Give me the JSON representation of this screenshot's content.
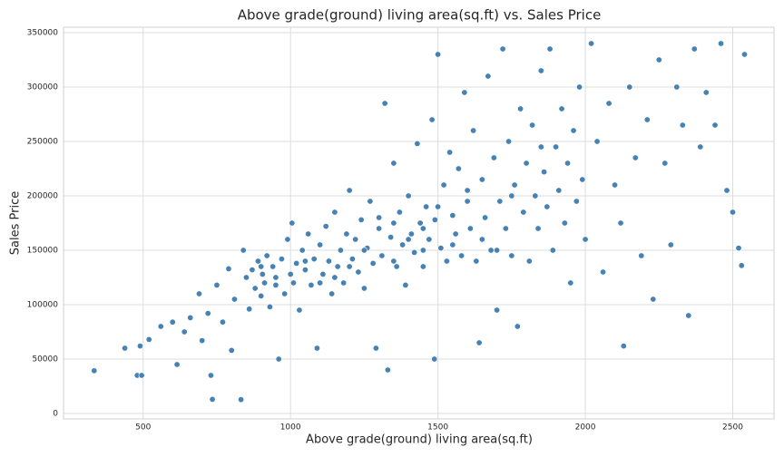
{
  "chart_data": {
    "type": "scatter",
    "title": "Above grade(ground) living area(sq.ft) vs. Sales Price",
    "x_label": "Above grade(ground) living area(sq.ft)",
    "y_label": "Sales Price",
    "color": "#4682b4",
    "grid": true,
    "xlim": [
      230,
      2640
    ],
    "ylim": [
      -5000,
      355000
    ],
    "xticks": [
      500,
      1000,
      1500,
      2000,
      2500
    ],
    "yticks": [
      0,
      50000,
      100000,
      150000,
      200000,
      250000,
      300000,
      350000
    ],
    "x": [
      334,
      438,
      480,
      495,
      490,
      520,
      560,
      600,
      615,
      640,
      660,
      690,
      700,
      720,
      730,
      735,
      750,
      770,
      790,
      800,
      810,
      832,
      840,
      850,
      860,
      870,
      880,
      890,
      900,
      905,
      912,
      920,
      930,
      940,
      950,
      960,
      970,
      980,
      990,
      1000,
      1005,
      1010,
      1020,
      1030,
      1040,
      1050,
      1060,
      1070,
      1080,
      1090,
      1100,
      1110,
      1120,
      1130,
      1140,
      1150,
      1160,
      1170,
      1180,
      1190,
      1200,
      1210,
      1220,
      1230,
      1240,
      1250,
      1260,
      1270,
      1280,
      1290,
      1300,
      1310,
      1320,
      1330,
      1340,
      1350,
      1360,
      1370,
      1380,
      1390,
      1400,
      1410,
      1420,
      1430,
      1440,
      1450,
      1460,
      1470,
      1480,
      1488,
      1490,
      1500,
      1510,
      1520,
      1530,
      1540,
      1550,
      1560,
      1570,
      1580,
      1590,
      1600,
      1610,
      1620,
      1630,
      1640,
      1650,
      1660,
      1670,
      1680,
      1690,
      1700,
      1710,
      1720,
      1730,
      1740,
      1750,
      1760,
      1770,
      1780,
      1790,
      1800,
      1810,
      1820,
      1830,
      1840,
      1850,
      1860,
      1870,
      1880,
      1890,
      1900,
      1910,
      1920,
      1930,
      1940,
      1950,
      1960,
      1970,
      1980,
      1990,
      2000,
      2020,
      2040,
      2060,
      2080,
      2100,
      2120,
      2130,
      2150,
      2170,
      2190,
      2210,
      2230,
      2250,
      2270,
      2290,
      2310,
      2330,
      2350,
      2370,
      2390,
      2410,
      2440,
      2460,
      2480,
      2500,
      2520,
      2530,
      2540,
      1400,
      1450,
      1350,
      1250,
      1150,
      950,
      1050,
      1550,
      1650,
      1750,
      1850,
      1600,
      1700,
      1300,
      1200,
      900,
      1100,
      1500,
      1450,
      1350
    ],
    "values": [
      39300,
      60000,
      35000,
      35000,
      62000,
      68000,
      80000,
      84000,
      45000,
      75000,
      88000,
      110000,
      67000,
      92000,
      35000,
      13000,
      118000,
      84000,
      133000,
      58000,
      105000,
      12800,
      150000,
      125000,
      96000,
      132000,
      115000,
      140000,
      108000,
      128000,
      120000,
      145000,
      98000,
      135000,
      118000,
      50000,
      142000,
      110000,
      160000,
      128000,
      175000,
      120000,
      138000,
      95000,
      150000,
      132000,
      165000,
      118000,
      142000,
      60000,
      155000,
      128000,
      172000,
      140000,
      110000,
      185000,
      135000,
      150000,
      120000,
      165000,
      205000,
      142000,
      160000,
      130000,
      178000,
      115000,
      152000,
      195000,
      138000,
      60000,
      170000,
      145000,
      285000,
      40000,
      162000,
      230000,
      135000,
      185000,
      155000,
      118000,
      200000,
      165000,
      148000,
      248000,
      175000,
      135000,
      190000,
      160000,
      270000,
      50000,
      178000,
      330000,
      152000,
      210000,
      140000,
      240000,
      182000,
      165000,
      225000,
      145000,
      295000,
      195000,
      170000,
      260000,
      140000,
      65000,
      215000,
      180000,
      310000,
      150000,
      235000,
      95000,
      195000,
      335000,
      170000,
      250000,
      145000,
      210000,
      80000,
      280000,
      185000,
      230000,
      140000,
      265000,
      200000,
      170000,
      315000,
      222000,
      190000,
      335000,
      150000,
      245000,
      205000,
      280000,
      175000,
      230000,
      120000,
      260000,
      195000,
      300000,
      215000,
      160000,
      340000,
      250000,
      130000,
      285000,
      210000,
      175000,
      62000,
      300000,
      235000,
      145000,
      270000,
      105000,
      325000,
      230000,
      155000,
      300000,
      265000,
      90000,
      335000,
      245000,
      295000,
      265000,
      340000,
      205000,
      185000,
      152000,
      136000,
      330000,
      160000,
      170000,
      140000,
      150000,
      125000,
      125000,
      140000,
      155000,
      160000,
      200000,
      245000,
      205000,
      150000,
      180000,
      135000,
      135000,
      120000,
      190000,
      150000,
      175000
    ]
  }
}
